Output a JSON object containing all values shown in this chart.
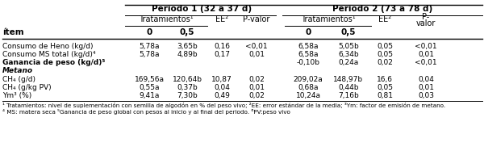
{
  "periodo1_header": "Periodo 1 (32 a 37 d)",
  "periodo2_header": "Periodo 2 (73 a 78 d)",
  "tratamientos_header": "Tratamientos¹",
  "ee_header": "EE²",
  "pvalor_header": "P-valor",
  "pvalor_header2_line1": "P-",
  "pvalor_header2_line2": "valor",
  "item_header": "ítem",
  "col0_header": "0",
  "col05_header": "0,5",
  "rows": [
    {
      "item": "Consumo de Heno (kg/d)",
      "bold": false,
      "italic": false,
      "p1_0": "5,78a",
      "p1_05": "3,65b",
      "p1_ee": "0,16",
      "p1_pv": "<0,01",
      "p2_0": "6,58a",
      "p2_05": "5,05b",
      "p2_ee": "0,05",
      "p2_pv": "<0,01"
    },
    {
      "item": "Consumo MS total (kg/d)⁴",
      "bold": false,
      "italic": false,
      "p1_0": "5,78a",
      "p1_05": "4,89b",
      "p1_ee": "0,17",
      "p1_pv": "0,01",
      "p2_0": "6,58a",
      "p2_05": "6,34b",
      "p2_ee": "0,05",
      "p2_pv": "0,01"
    },
    {
      "item": "Ganancia de peso (kg/d)⁵",
      "bold": true,
      "italic": false,
      "p1_0": "",
      "p1_05": "",
      "p1_ee": "",
      "p1_pv": "",
      "p2_0": "-0,10b",
      "p2_05": "0,24a",
      "p2_ee": "0,02",
      "p2_pv": "<0,01"
    },
    {
      "item": "Metano",
      "bold": true,
      "italic": true,
      "p1_0": "",
      "p1_05": "",
      "p1_ee": "",
      "p1_pv": "",
      "p2_0": "",
      "p2_05": "",
      "p2_ee": "",
      "p2_pv": ""
    },
    {
      "item": "CH₄ (g/d)",
      "bold": false,
      "italic": false,
      "p1_0": "169,56a",
      "p1_05": "120,64b",
      "p1_ee": "10,87",
      "p1_pv": "0,02",
      "p2_0": "209,02a",
      "p2_05": "148,97b",
      "p2_ee": "16,6",
      "p2_pv": "0,04"
    },
    {
      "item": "CH₄ (g/kg PV)",
      "bold": false,
      "italic": false,
      "p1_0": "0,55a",
      "p1_05": "0,37b",
      "p1_ee": "0,04",
      "p1_pv": "0,01",
      "p2_0": "0,68a",
      "p2_05": "0,44b",
      "p2_ee": "0,05",
      "p2_pv": "0,01"
    },
    {
      "item": "Ym³ (%)",
      "bold": false,
      "italic": false,
      "p1_0": "9,41a",
      "p1_05": "7,30b",
      "p1_ee": "0,49",
      "p1_pv": "0,02",
      "p2_0": "10,24a",
      "p2_05": "7,16b",
      "p2_ee": "0,81",
      "p2_pv": "0,03"
    }
  ],
  "footnotes": [
    "¹ Tratamientos: nivel de suplementación con semilla de algodón en % del peso vivo; ²EE: error estándar de la media; ³Ym: factor de emisión de metano.",
    "⁴ MS: matera seca ⁵Ganancia de peso global con pesos al inicio y al final del periodo. ⁶PV:peso vivo"
  ],
  "bg_color": "#ffffff",
  "font_size": 6.5,
  "header_font_size": 7.0,
  "bold_header_font_size": 7.5
}
